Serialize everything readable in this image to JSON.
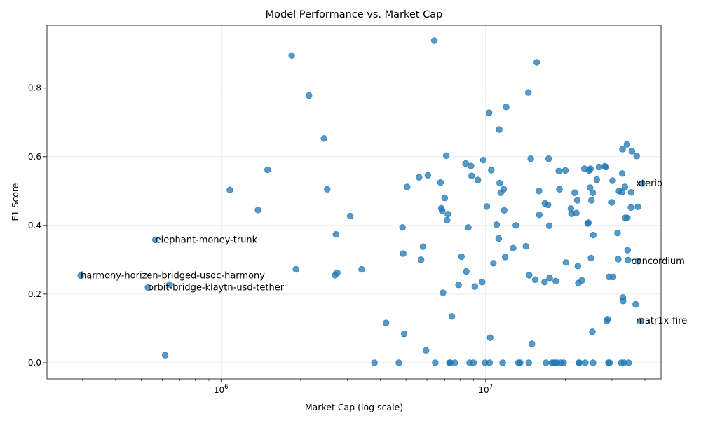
{
  "chart_data": {
    "type": "scatter",
    "title": "Model Performance vs. Market Cap",
    "xlabel": "Market Cap (log scale)",
    "ylabel": "F1 Score",
    "x_scale": "log",
    "xlim": [
      220000,
      46000000
    ],
    "ylim": [
      -0.047,
      0.983
    ],
    "x_ticks": [
      {
        "value": 1000000,
        "base": "10",
        "exp": "6"
      },
      {
        "value": 10000000,
        "base": "10",
        "exp": "7"
      }
    ],
    "y_ticks": [
      0.0,
      0.2,
      0.4,
      0.6,
      0.8
    ],
    "y_tick_labels": [
      "0.0",
      "0.2",
      "0.4",
      "0.6",
      "0.8"
    ],
    "grid": true,
    "point_color": "#1f77b4",
    "annotations": [
      {
        "label": "harmony-horizen-bridged-usdc-harmony",
        "x": 295000,
        "y": 0.254
      },
      {
        "label": "elephant-money-trunk",
        "x": 565000,
        "y": 0.358
      },
      {
        "label": "orbit-bridge-klaytn-usd-tether",
        "x": 530000,
        "y": 0.219
      },
      {
        "label": "xterio",
        "x": 37000000,
        "y": 0.522
      },
      {
        "label": "concordium",
        "x": 35500000,
        "y": 0.296
      },
      {
        "label": "matr1x-fire",
        "x": 37000000,
        "y": 0.122
      }
    ],
    "points": [
      [
        295000,
        0.254
      ],
      [
        565000,
        0.358
      ],
      [
        530000,
        0.219
      ],
      [
        640000,
        0.228
      ],
      [
        615000,
        0.022
      ],
      [
        1080000,
        0.503
      ],
      [
        1380000,
        0.445
      ],
      [
        1500000,
        0.562
      ],
      [
        1850000,
        0.895
      ],
      [
        1920000,
        0.272
      ],
      [
        2150000,
        0.778
      ],
      [
        2450000,
        0.653
      ],
      [
        2520000,
        0.505
      ],
      [
        2700000,
        0.255
      ],
      [
        2720000,
        0.374
      ],
      [
        2750000,
        0.262
      ],
      [
        3080000,
        0.427
      ],
      [
        3400000,
        0.272
      ],
      [
        3800000,
        0.0
      ],
      [
        4200000,
        0.116
      ],
      [
        4700000,
        0.0
      ],
      [
        4850000,
        0.394
      ],
      [
        4880000,
        0.318
      ],
      [
        4920000,
        0.084
      ],
      [
        5050000,
        0.512
      ],
      [
        5600000,
        0.54
      ],
      [
        5700000,
        0.3
      ],
      [
        5800000,
        0.338
      ],
      [
        5950000,
        0.036
      ],
      [
        6050000,
        0.546
      ],
      [
        6400000,
        0.938
      ],
      [
        6450000,
        0.0
      ],
      [
        6750000,
        0.525
      ],
      [
        6800000,
        0.45
      ],
      [
        6850000,
        0.443
      ],
      [
        6900000,
        0.204
      ],
      [
        7000000,
        0.48
      ],
      [
        7100000,
        0.603
      ],
      [
        7150000,
        0.415
      ],
      [
        7200000,
        0.433
      ],
      [
        7300000,
        0.0
      ],
      [
        7350000,
        0.0
      ],
      [
        7450000,
        0.135
      ],
      [
        7650000,
        0.0
      ],
      [
        7900000,
        0.227
      ],
      [
        8100000,
        0.309
      ],
      [
        8400000,
        0.58
      ],
      [
        8450000,
        0.266
      ],
      [
        8600000,
        0.394
      ],
      [
        8700000,
        0.0
      ],
      [
        8800000,
        0.573
      ],
      [
        8850000,
        0.544
      ],
      [
        9000000,
        0.0
      ],
      [
        9100000,
        0.222
      ],
      [
        9350000,
        0.532
      ],
      [
        9700000,
        0.235
      ],
      [
        9800000,
        0.59
      ],
      [
        9950000,
        0.0
      ],
      [
        10100000,
        0.455
      ],
      [
        10300000,
        0.728
      ],
      [
        10350000,
        0.0
      ],
      [
        10400000,
        0.073
      ],
      [
        10500000,
        0.561
      ],
      [
        10700000,
        0.29
      ],
      [
        11000000,
        0.402
      ],
      [
        11200000,
        0.362
      ],
      [
        11250000,
        0.679
      ],
      [
        11300000,
        0.523
      ],
      [
        11400000,
        0.495
      ],
      [
        11600000,
        0.0
      ],
      [
        11700000,
        0.505
      ],
      [
        11750000,
        0.444
      ],
      [
        11850000,
        0.308
      ],
      [
        11950000,
        0.745
      ],
      [
        12700000,
        0.334
      ],
      [
        13000000,
        0.4
      ],
      [
        13300000,
        0.0
      ],
      [
        13500000,
        0.0
      ],
      [
        14200000,
        0.339
      ],
      [
        14500000,
        0.787
      ],
      [
        14550000,
        0.0
      ],
      [
        14600000,
        0.255
      ],
      [
        14800000,
        0.594
      ],
      [
        14950000,
        0.055
      ],
      [
        15400000,
        0.242
      ],
      [
        15600000,
        0.875
      ],
      [
        15900000,
        0.5
      ],
      [
        15950000,
        0.431
      ],
      [
        16700000,
        0.235
      ],
      [
        16750000,
        0.464
      ],
      [
        16900000,
        0.0
      ],
      [
        17200000,
        0.46
      ],
      [
        17300000,
        0.594
      ],
      [
        17400000,
        0.399
      ],
      [
        17450000,
        0.247
      ],
      [
        17800000,
        0.0
      ],
      [
        18100000,
        0.0
      ],
      [
        18300000,
        0.0
      ],
      [
        18400000,
        0.238
      ],
      [
        18600000,
        0.0
      ],
      [
        18900000,
        0.558
      ],
      [
        19000000,
        0.505
      ],
      [
        19200000,
        0.0
      ],
      [
        19700000,
        0.0
      ],
      [
        20000000,
        0.56
      ],
      [
        20100000,
        0.292
      ],
      [
        21000000,
        0.449
      ],
      [
        21100000,
        0.434
      ],
      [
        21700000,
        0.495
      ],
      [
        22000000,
        0.436
      ],
      [
        22200000,
        0.473
      ],
      [
        22300000,
        0.282
      ],
      [
        22400000,
        0.232
      ],
      [
        22500000,
        0.0
      ],
      [
        22600000,
        0.0
      ],
      [
        23100000,
        0.24
      ],
      [
        23600000,
        0.565
      ],
      [
        23800000,
        0.0
      ],
      [
        24300000,
        0.406
      ],
      [
        24450000,
        0.408
      ],
      [
        24600000,
        0.56
      ],
      [
        24800000,
        0.51
      ],
      [
        24900000,
        0.565
      ],
      [
        25000000,
        0.305
      ],
      [
        25100000,
        0.473
      ],
      [
        25300000,
        0.09
      ],
      [
        25400000,
        0.495
      ],
      [
        25450000,
        0.0
      ],
      [
        25500000,
        0.372
      ],
      [
        26300000,
        0.533
      ],
      [
        26800000,
        0.57
      ],
      [
        28200000,
        0.572
      ],
      [
        28500000,
        0.57
      ],
      [
        28700000,
        0.122
      ],
      [
        28900000,
        0.127
      ],
      [
        29100000,
        0.0
      ],
      [
        29200000,
        0.25
      ],
      [
        29400000,
        0.0
      ],
      [
        30000000,
        0.467
      ],
      [
        30200000,
        0.53
      ],
      [
        30300000,
        0.25
      ],
      [
        31500000,
        0.378
      ],
      [
        31700000,
        0.302
      ],
      [
        31900000,
        0.5
      ],
      [
        32500000,
        0.0
      ],
      [
        32700000,
        0.497
      ],
      [
        32800000,
        0.551
      ],
      [
        32900000,
        0.622
      ],
      [
        33000000,
        0.19
      ],
      [
        33050000,
        0.18
      ],
      [
        33300000,
        0.0
      ],
      [
        33600000,
        0.512
      ],
      [
        33700000,
        0.422
      ],
      [
        34200000,
        0.636
      ],
      [
        34300000,
        0.422
      ],
      [
        34400000,
        0.328
      ],
      [
        34500000,
        0.299
      ],
      [
        34700000,
        0.0
      ],
      [
        35400000,
        0.452
      ],
      [
        35500000,
        0.496
      ],
      [
        35700000,
        0.616
      ],
      [
        36900000,
        0.17
      ],
      [
        37200000,
        0.602
      ],
      [
        37600000,
        0.454
      ],
      [
        37700000,
        0.296
      ],
      [
        38600000,
        0.122
      ],
      [
        39000000,
        0.522
      ]
    ]
  }
}
